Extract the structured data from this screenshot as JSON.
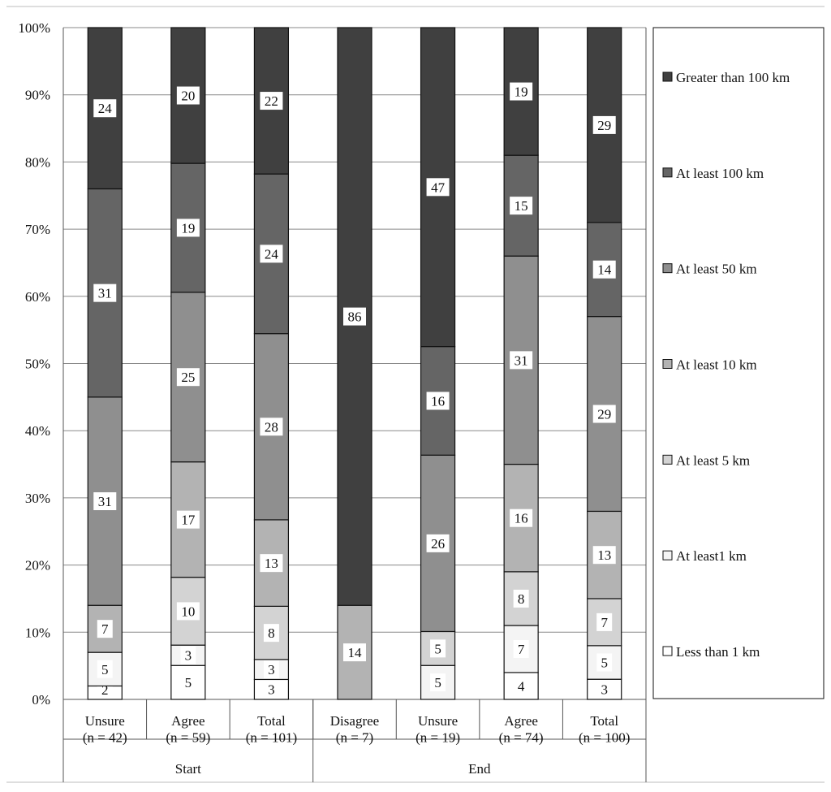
{
  "chart_data": {
    "type": "bar",
    "stacked": true,
    "percent_stacked": true,
    "groups": [
      {
        "label": "Start",
        "categories": [
          "Unsure\n(n = 42)",
          "Agree\n(n = 59)",
          "Total\n(n = 101)"
        ]
      },
      {
        "label": "End",
        "categories": [
          "Disagree\n(n = 7)",
          "Unsure\n(n = 19)",
          "Agree\n(n = 74)",
          "Total\n(n = 100)"
        ]
      }
    ],
    "categories": [
      "Unsure\n(n = 42)",
      "Agree\n(n = 59)",
      "Total\n(n = 101)",
      "Disagree\n(n = 7)",
      "Unsure\n(n = 19)",
      "Agree\n(n = 74)",
      "Total\n(n = 100)"
    ],
    "series": [
      {
        "name": "Less than 1 km",
        "color": "#ffffff",
        "values": [
          2,
          5,
          3,
          0,
          0,
          4,
          3
        ]
      },
      {
        "name": "At least1 km",
        "color": "#f4f4f4",
        "values": [
          5,
          3,
          3,
          0,
          5,
          7,
          5
        ]
      },
      {
        "name": "At least 5 km",
        "color": "#d3d3d3",
        "values": [
          0,
          10,
          8,
          0,
          5,
          8,
          7
        ]
      },
      {
        "name": "At least 10 km",
        "color": "#b3b3b3",
        "values": [
          7,
          17,
          13,
          14,
          0,
          16,
          13
        ]
      },
      {
        "name": "At least 50 km",
        "color": "#8f8f8f",
        "values": [
          31,
          25,
          28,
          0,
          26,
          31,
          29
        ]
      },
      {
        "name": "At least 100 km",
        "color": "#656565",
        "values": [
          31,
          19,
          24,
          0,
          16,
          15,
          14
        ]
      },
      {
        "name": "Greater than 100 km",
        "color": "#404040",
        "values": [
          24,
          20,
          22,
          86,
          47,
          19,
          29
        ]
      }
    ],
    "legend_order": [
      "Greater than 100 km",
      "At least 100 km",
      "At least 50 km",
      "At least 10 km",
      "At least 5 km",
      "At least1 km",
      "Less than 1 km"
    ],
    "ylim": [
      0,
      100
    ],
    "yticks": [
      "0%",
      "10%",
      "20%",
      "30%",
      "40%",
      "50%",
      "60%",
      "70%",
      "80%",
      "90%",
      "100%"
    ],
    "xlabel": "",
    "ylabel": "",
    "grid": true,
    "legend_position": "right"
  }
}
